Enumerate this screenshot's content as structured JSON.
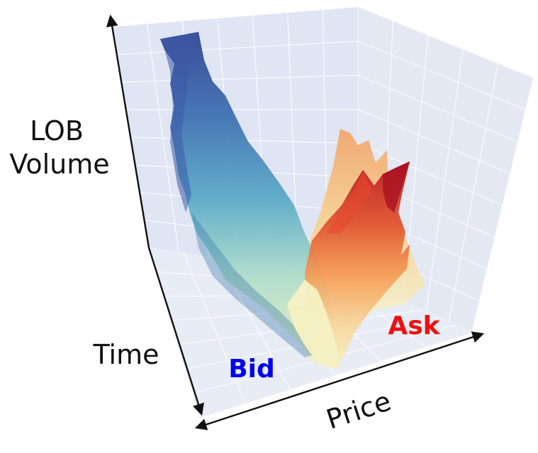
{
  "chart_data": {
    "type": "surface3d",
    "xlabel": "Price",
    "ylabel": "Time",
    "zlabel_lines": [
      "LOB",
      "Volume"
    ],
    "annotations": [
      {
        "text": "Bid",
        "color": "#0000ee"
      },
      {
        "text": "Ask",
        "color": "#ee1111"
      }
    ],
    "grid": true,
    "colorscale": "RdYlBu (red = ask side, blue = bid side)",
    "pane_color": "#dde3f0",
    "grid_color": "#ffffff"
  }
}
